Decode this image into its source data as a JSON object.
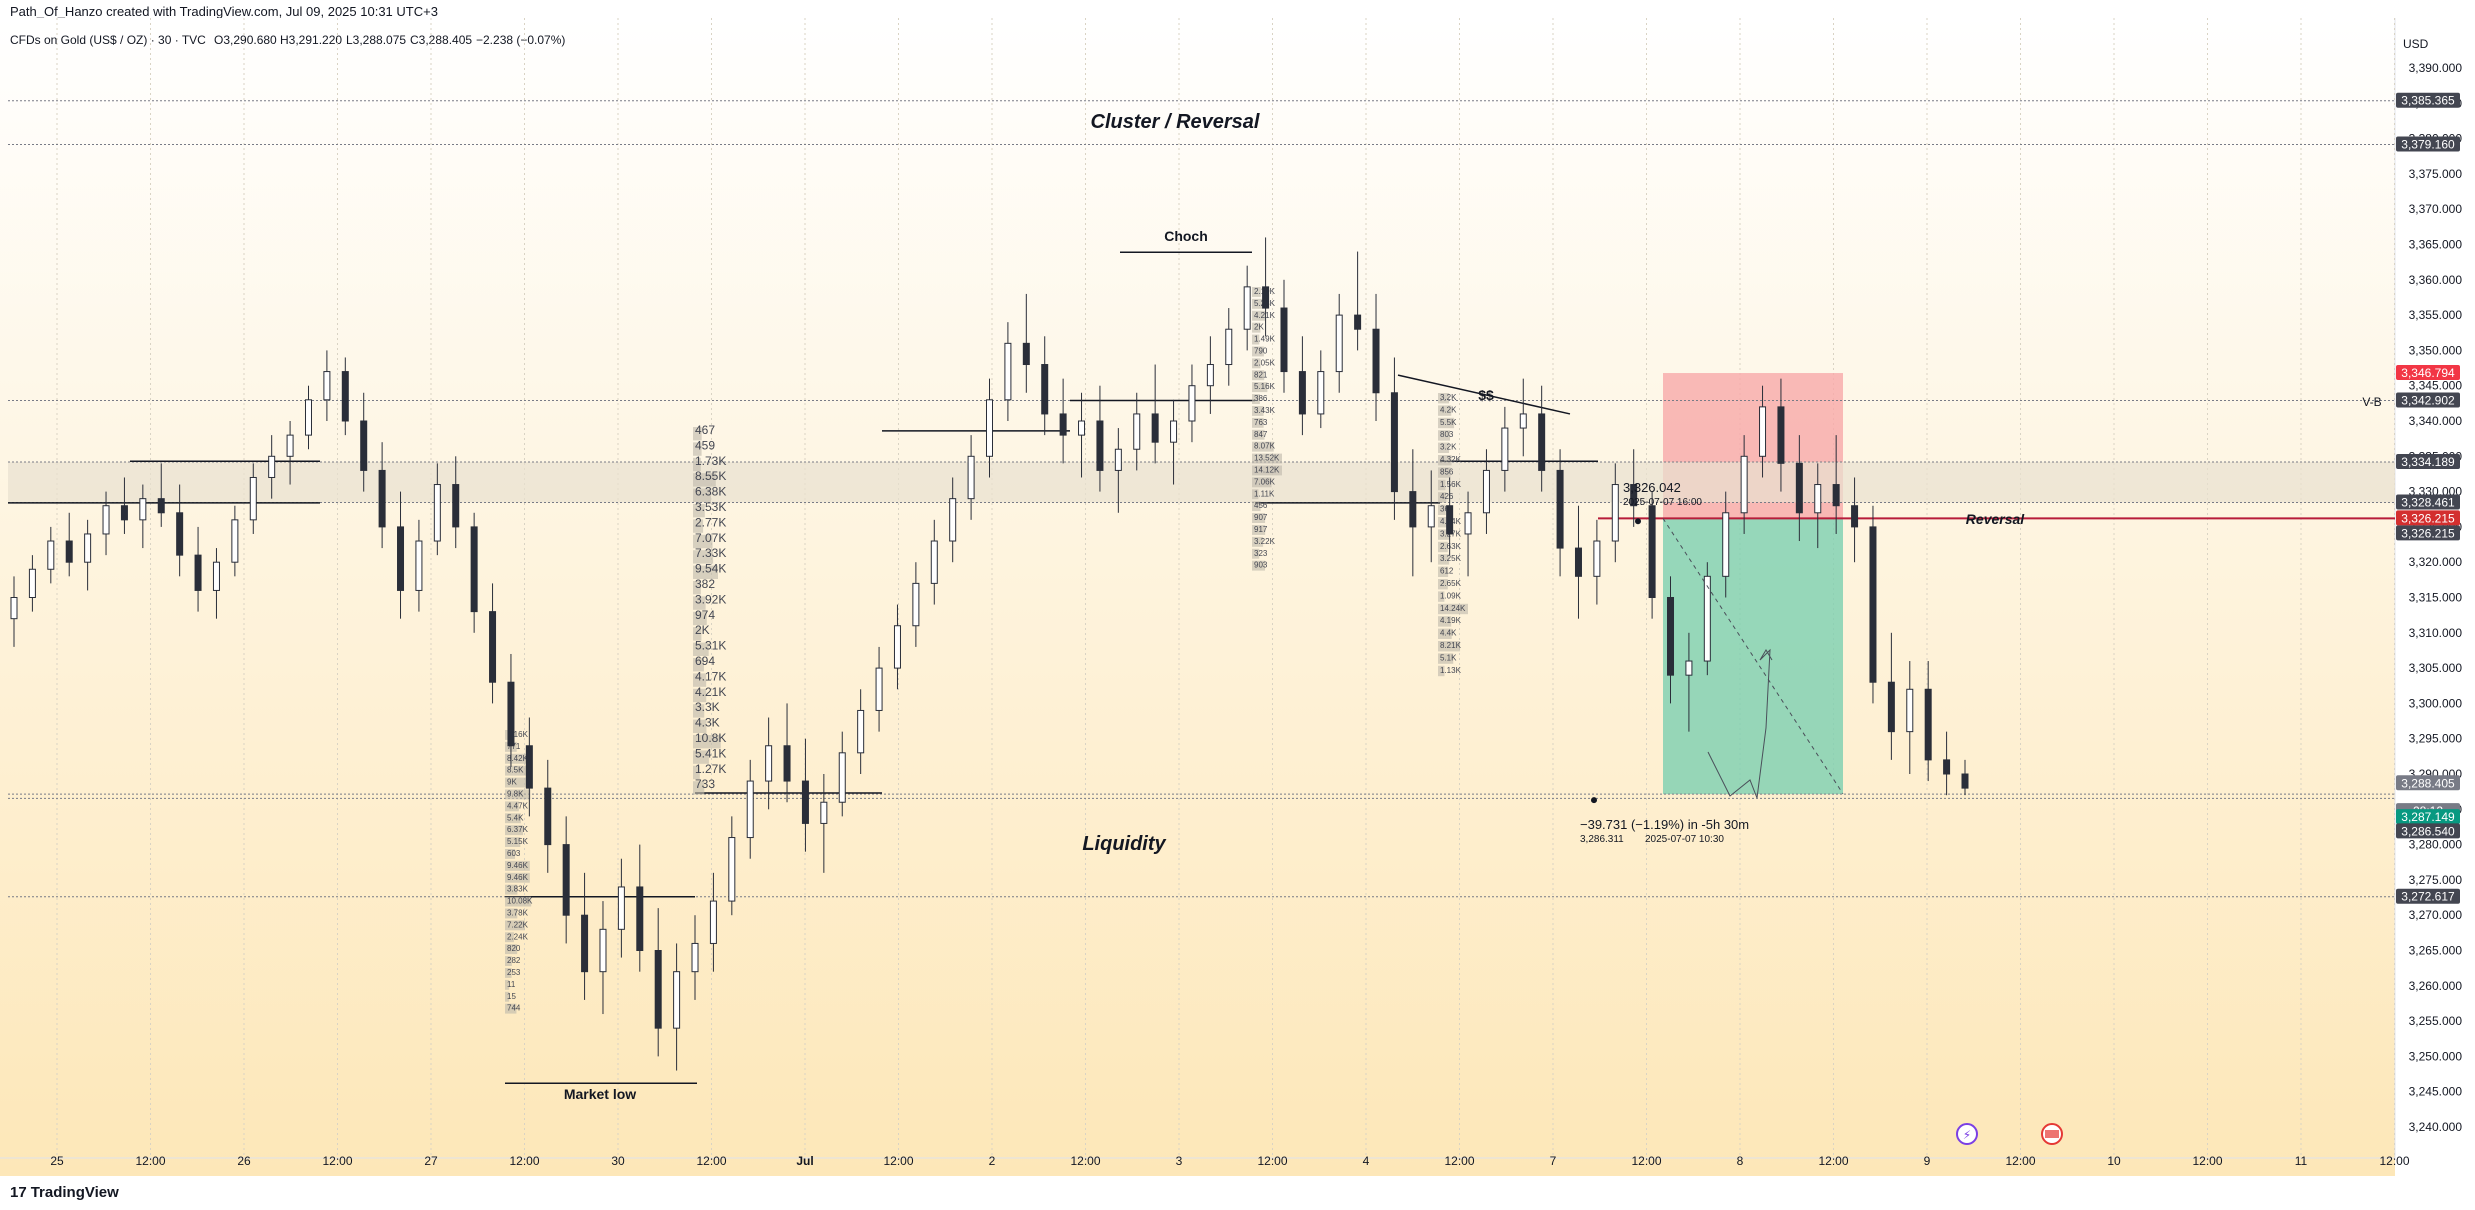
{
  "header": {
    "creator_line": "Path_Of_Hanzo created with TradingView.com, Jul 09, 2025 10:31 UTC+3"
  },
  "footer": {
    "brand": "TradingView"
  },
  "chart_data": {
    "type": "candlestick",
    "symbol_line": "CFDs on Gold (US$ / OZ) · 30 · TVC",
    "ohlc": {
      "open": "O3,290.680",
      "high": "H3,291.220",
      "low": "L3,288.075",
      "close": "C3,288.405",
      "change": "−2.238 (−0.07%)"
    },
    "currency": "USD",
    "ylim": [
      3236,
      3393
    ],
    "y_ticks": [
      "3,390.000",
      "3,385.000",
      "3,380.000",
      "3,375.000",
      "3,370.000",
      "3,365.000",
      "3,360.000",
      "3,355.000",
      "3,350.000",
      "3,345.000",
      "3,340.000",
      "3,335.000",
      "3,330.000",
      "3,325.000",
      "3,320.000",
      "3,315.000",
      "3,310.000",
      "3,305.000",
      "3,300.000",
      "3,295.000",
      "3,290.000",
      "3,285.000",
      "3,280.000",
      "3,275.000",
      "3,270.000",
      "3,265.000",
      "3,260.000",
      "3,255.000",
      "3,250.000",
      "3,245.000",
      "3,240.000"
    ],
    "x_ticks": [
      "25",
      "12:00",
      "26",
      "12:00",
      "27",
      "12:00",
      "30",
      "12:00",
      "Jul",
      "12:00",
      "2",
      "12:00",
      "3",
      "12:00",
      "4",
      "12:00",
      "7",
      "12:00",
      "8",
      "12:00",
      "9",
      "12:00",
      "10",
      "12:00",
      "11",
      "12:00"
    ],
    "price_labels": [
      {
        "text": "3,385.365",
        "price": 3385.365,
        "color": "#434651"
      },
      {
        "text": "3,379.160",
        "price": 3379.16,
        "color": "#434651"
      },
      {
        "text": "3,346.794",
        "price": 3346.794,
        "color": "#f23645"
      },
      {
        "text": "3,342.902",
        "price": 3342.902,
        "color": "#434651"
      },
      {
        "text": "3,334.189",
        "price": 3334.189,
        "color": "#434651"
      },
      {
        "text": "3,328.461",
        "price": 3328.461,
        "color": "#434651"
      },
      {
        "text": "3,326.215",
        "price": 3326.215,
        "color": "#d32f2f"
      },
      {
        "text": "3,326.215",
        "price": 3326.215,
        "color": "#434651"
      },
      {
        "text": "3,288.405",
        "price": 3288.405,
        "color": "#787b86"
      },
      {
        "text": "28:12",
        "price": 3286.3,
        "color": "#787b86"
      },
      {
        "text": "3,287.149",
        "price": 3287.149,
        "color": "#089981"
      },
      {
        "text": "3,286.540",
        "price": 3286.54,
        "color": "#434651"
      },
      {
        "text": "3,272.617",
        "price": 3272.617,
        "color": "#434651"
      }
    ],
    "annotations": {
      "cluster": "Cluster / Reversal",
      "choch": "Choch",
      "liquidity_sweep": "$$",
      "vb": "V-B",
      "reversal": "Reversal",
      "liquidity": "Liquidity",
      "market_low": "Market low",
      "entry_price": "3,326.042",
      "entry_time": "2025-07-07  16:00",
      "measure": "−39.731 (−1.19%) in -5h 30m",
      "measure_price": "3,286.311",
      "measure_time": "2025-07-07  10:30"
    },
    "volume_profile_left": [
      "467",
      "459",
      "1.73K",
      "8.55K",
      "6.38K",
      "3.53K",
      "2.77K",
      "7.07K",
      "7.33K",
      "9.54K",
      "382",
      "3.92K",
      "974",
      "2K",
      "5.31K",
      "694",
      "4.17K",
      "4.21K",
      "3.3K",
      "4.3K",
      "10.8K",
      "5.41K",
      "1.27K",
      "733"
    ],
    "volume_profile_low": [
      "1.16K",
      "771",
      "8.42K",
      "8.5K",
      "9K",
      "9.8K",
      "4.47K",
      "5.4K",
      "6.37K",
      "5.15K",
      "603",
      "9.46K",
      "9.46K",
      "3.83K",
      "10.08K",
      "3.78K",
      "7.22K",
      "2.24K",
      "820",
      "282",
      "253",
      "11",
      "15",
      "744"
    ],
    "volume_profile_choch": [
      "2.19K",
      "5.28K",
      "4.21K",
      "2K",
      "1.49K",
      "790",
      "2.05K",
      "821",
      "5.16K",
      "386",
      "3.43K",
      "763",
      "847",
      "8.07K",
      "13.52K",
      "14.12K",
      "7.06K",
      "1.11K",
      "456",
      "907",
      "917",
      "3.22K",
      "323",
      "903"
    ],
    "volume_profile_right": [
      "3.2K",
      "4.2K",
      "5.5K",
      "803",
      "3.2K",
      "4.32K",
      "856",
      "1.56K",
      "426",
      "369",
      "4.94K",
      "3.27K",
      "2.63K",
      "3.25K",
      "612",
      "2.65K",
      "1.09K",
      "14.24K",
      "4.19K",
      "4.4K",
      "8.21K",
      "5.1K",
      "1.13K"
    ],
    "candles": [
      [
        3312,
        3318,
        3308,
        3315
      ],
      [
        3315,
        3321,
        3313,
        3319
      ],
      [
        3319,
        3325,
        3317,
        3323
      ],
      [
        3323,
        3327,
        3318,
        3320
      ],
      [
        3320,
        3326,
        3316,
        3324
      ],
      [
        3324,
        3330,
        3321,
        3328
      ],
      [
        3328,
        3332,
        3324,
        3326
      ],
      [
        3326,
        3331,
        3322,
        3329
      ],
      [
        3329,
        3334,
        3325,
        3327
      ],
      [
        3327,
        3331,
        3318,
        3321
      ],
      [
        3321,
        3325,
        3313,
        3316
      ],
      [
        3316,
        3322,
        3312,
        3320
      ],
      [
        3320,
        3328,
        3318,
        3326
      ],
      [
        3326,
        3334,
        3324,
        3332
      ],
      [
        3332,
        3338,
        3329,
        3335
      ],
      [
        3335,
        3340,
        3331,
        3338
      ],
      [
        3338,
        3345,
        3336,
        3343
      ],
      [
        3343,
        3350,
        3340,
        3347
      ],
      [
        3347,
        3349,
        3338,
        3340
      ],
      [
        3340,
        3344,
        3330,
        3333
      ],
      [
        3333,
        3337,
        3322,
        3325
      ],
      [
        3325,
        3330,
        3312,
        3316
      ],
      [
        3316,
        3326,
        3313,
        3323
      ],
      [
        3323,
        3334,
        3321,
        3331
      ],
      [
        3331,
        3335,
        3322,
        3325
      ],
      [
        3325,
        3327,
        3310,
        3313
      ],
      [
        3313,
        3317,
        3300,
        3303
      ],
      [
        3303,
        3307,
        3291,
        3294
      ],
      [
        3294,
        3298,
        3284,
        3288
      ],
      [
        3288,
        3292,
        3276,
        3280
      ],
      [
        3280,
        3284,
        3266,
        3270
      ],
      [
        3270,
        3276,
        3258,
        3262
      ],
      [
        3262,
        3272,
        3256,
        3268
      ],
      [
        3268,
        3278,
        3264,
        3274
      ],
      [
        3274,
        3280,
        3262,
        3265
      ],
      [
        3265,
        3271,
        3250,
        3254
      ],
      [
        3254,
        3266,
        3248,
        3262
      ],
      [
        3262,
        3270,
        3258,
        3266
      ],
      [
        3266,
        3276,
        3262,
        3272
      ],
      [
        3272,
        3284,
        3270,
        3281
      ],
      [
        3281,
        3292,
        3278,
        3289
      ],
      [
        3289,
        3298,
        3285,
        3294
      ],
      [
        3294,
        3300,
        3286,
        3289
      ],
      [
        3289,
        3295,
        3279,
        3283
      ],
      [
        3283,
        3290,
        3276,
        3286
      ],
      [
        3286,
        3296,
        3284,
        3293
      ],
      [
        3293,
        3302,
        3290,
        3299
      ],
      [
        3299,
        3308,
        3296,
        3305
      ],
      [
        3305,
        3314,
        3302,
        3311
      ],
      [
        3311,
        3320,
        3308,
        3317
      ],
      [
        3317,
        3326,
        3314,
        3323
      ],
      [
        3323,
        3332,
        3320,
        3329
      ],
      [
        3329,
        3338,
        3326,
        3335
      ],
      [
        3335,
        3346,
        3332,
        3343
      ],
      [
        3343,
        3354,
        3340,
        3351
      ],
      [
        3351,
        3358,
        3344,
        3348
      ],
      [
        3348,
        3352,
        3338,
        3341
      ],
      [
        3341,
        3346,
        3334,
        3338
      ],
      [
        3338,
        3344,
        3332,
        3340
      ],
      [
        3340,
        3345,
        3330,
        3333
      ],
      [
        3333,
        3339,
        3327,
        3336
      ],
      [
        3336,
        3344,
        3333,
        3341
      ],
      [
        3341,
        3348,
        3334,
        3337
      ],
      [
        3337,
        3343,
        3331,
        3340
      ],
      [
        3340,
        3348,
        3337,
        3345
      ],
      [
        3345,
        3352,
        3341,
        3348
      ],
      [
        3348,
        3356,
        3345,
        3353
      ],
      [
        3353,
        3362,
        3350,
        3359
      ],
      [
        3359,
        3366,
        3352,
        3356
      ],
      [
        3356,
        3360,
        3344,
        3347
      ],
      [
        3347,
        3352,
        3338,
        3341
      ],
      [
        3341,
        3350,
        3339,
        3347
      ],
      [
        3347,
        3358,
        3344,
        3355
      ],
      [
        3355,
        3364,
        3350,
        3353
      ],
      [
        3353,
        3358,
        3340,
        3344
      ],
      [
        3344,
        3349,
        3326,
        3330
      ],
      [
        3330,
        3336,
        3318,
        3325
      ],
      [
        3325,
        3333,
        3320,
        3328
      ],
      [
        3328,
        3332,
        3321,
        3324
      ],
      [
        3324,
        3330,
        3318,
        3327
      ],
      [
        3327,
        3336,
        3324,
        3333
      ],
      [
        3333,
        3342,
        3330,
        3339
      ],
      [
        3339,
        3346,
        3335,
        3341
      ],
      [
        3341,
        3345,
        3330,
        3333
      ],
      [
        3333,
        3336,
        3318,
        3322
      ],
      [
        3322,
        3328,
        3312,
        3318
      ],
      [
        3318,
        3326,
        3314,
        3323
      ],
      [
        3323,
        3334,
        3320,
        3331
      ],
      [
        3331,
        3336,
        3325,
        3328
      ],
      [
        3328,
        3330,
        3312,
        3315
      ],
      [
        3315,
        3318,
        3300,
        3304
      ],
      [
        3304,
        3310,
        3296,
        3306
      ],
      [
        3306,
        3320,
        3304,
        3318
      ],
      [
        3318,
        3330,
        3315,
        3327
      ],
      [
        3327,
        3338,
        3324,
        3335
      ],
      [
        3335,
        3345,
        3332,
        3342
      ],
      [
        3342,
        3346,
        3330,
        3334
      ],
      [
        3334,
        3338,
        3323,
        3327
      ],
      [
        3327,
        3334,
        3322,
        3331
      ],
      [
        3331,
        3338,
        3324,
        3328
      ],
      [
        3328,
        3332,
        3320,
        3325
      ],
      [
        3325,
        3328,
        3300,
        3303
      ],
      [
        3303,
        3310,
        3292,
        3296
      ],
      [
        3296,
        3306,
        3290,
        3302
      ],
      [
        3302,
        3306,
        3289,
        3292
      ],
      [
        3292,
        3296,
        3287,
        3290
      ],
      [
        3290,
        3292,
        3287,
        3288
      ]
    ]
  }
}
